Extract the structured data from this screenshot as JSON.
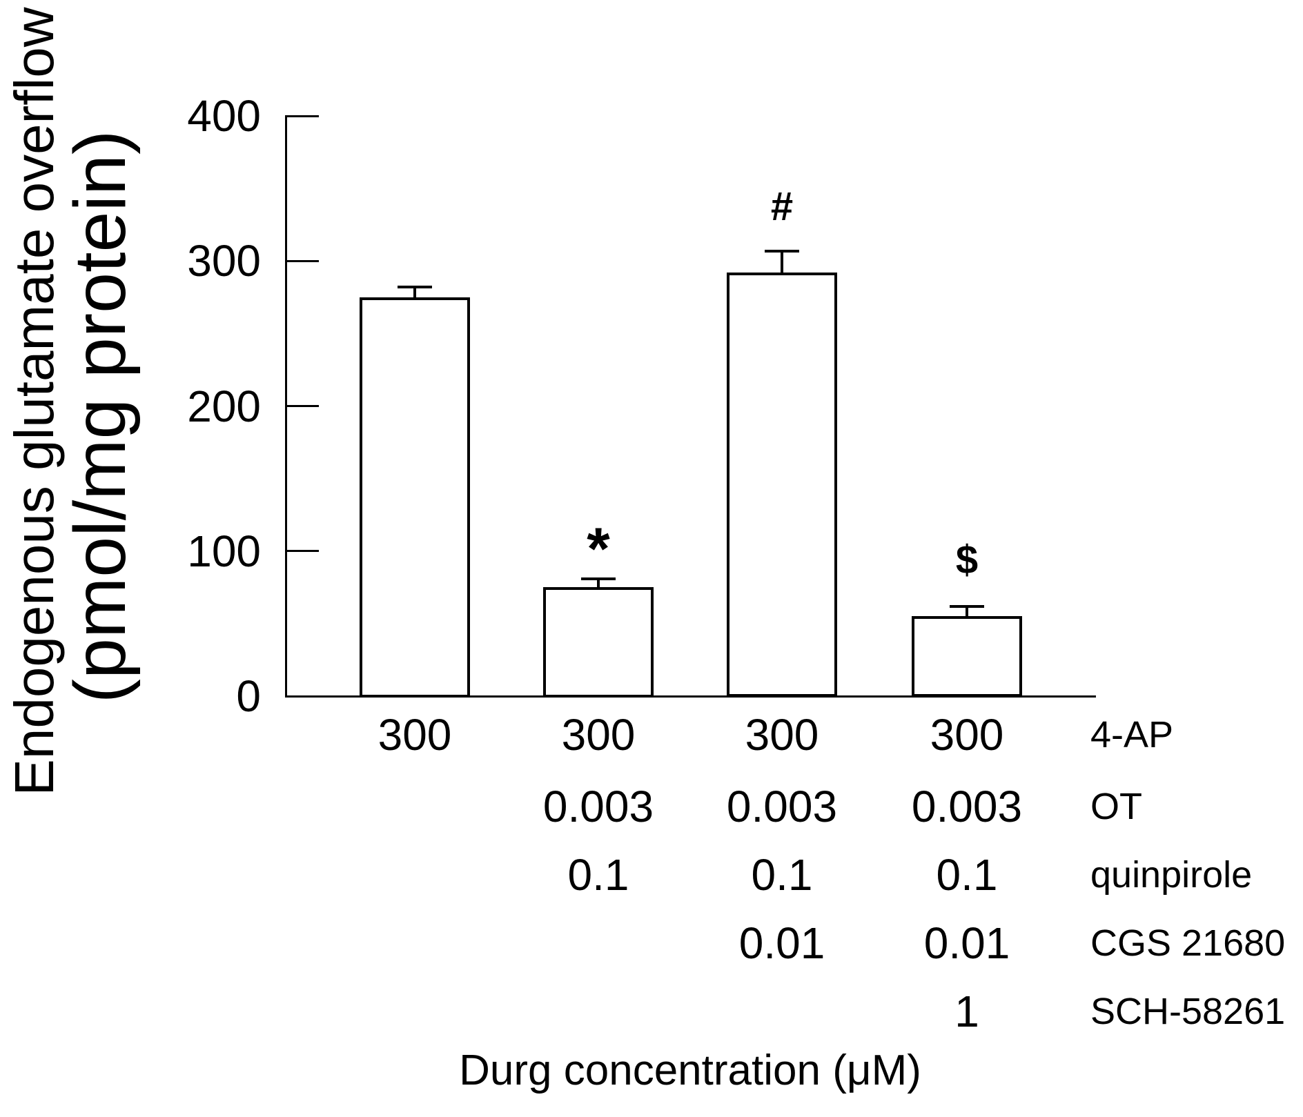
{
  "figure": {
    "background": "#ffffff",
    "ink_color": "#000000"
  },
  "chart_data": {
    "type": "bar",
    "title": "",
    "ylabel_line1": "Endogenous glutamate overflow",
    "ylabel_line2": "(pmol/mg protein)",
    "xlabel": "Durg concentration (μM)",
    "ylim": [
      0,
      400
    ],
    "yticks": [
      0,
      100,
      200,
      300,
      400
    ],
    "grid": false,
    "legend": null,
    "bar_fill": "#ffffff",
    "bar_stroke": "#000000",
    "bars": [
      {
        "value": 275,
        "sem": 7,
        "annotation": ""
      },
      {
        "value": 75,
        "sem": 6,
        "annotation": "*"
      },
      {
        "value": 292,
        "sem": 15,
        "annotation": "#"
      },
      {
        "value": 55,
        "sem": 7,
        "annotation": "$"
      }
    ],
    "dose_table": {
      "unit_note": "concentrations in μM per drug row",
      "rows": [
        {
          "drug": "4-AP",
          "doses": [
            "300",
            "300",
            "300",
            "300"
          ]
        },
        {
          "drug": "OT",
          "doses": [
            "",
            "0.003",
            "0.003",
            "0.003"
          ]
        },
        {
          "drug": "quinpirole",
          "doses": [
            "",
            "0.1",
            "0.1",
            "0.1"
          ]
        },
        {
          "drug": "CGS 21680",
          "doses": [
            "",
            "",
            "0.01",
            "0.01"
          ]
        },
        {
          "drug": "SCH-58261",
          "doses": [
            "",
            "",
            "",
            "1"
          ]
        }
      ]
    }
  }
}
